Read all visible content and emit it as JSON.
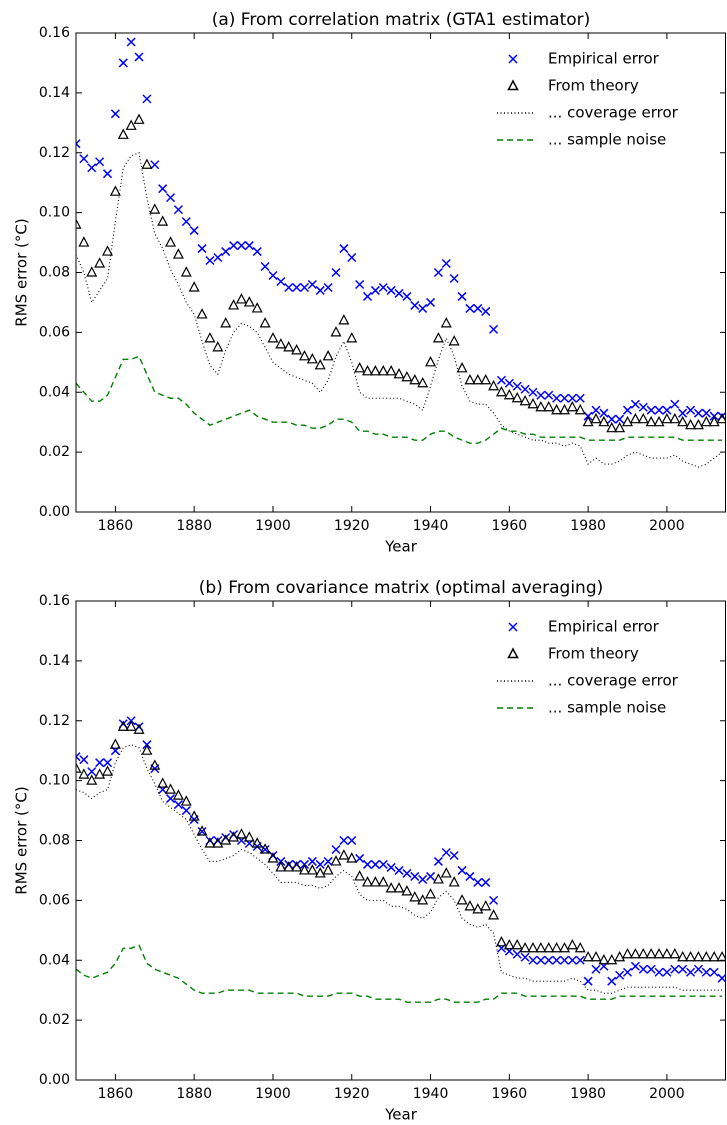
{
  "chart_data": [
    {
      "type": "scatter-line",
      "title": "(a) From correlation matrix (GTA1 estimator)",
      "xlabel": "Year",
      "ylabel": "RMS error (°C)",
      "xlim": [
        1850,
        2015
      ],
      "ylim": [
        0,
        0.16
      ],
      "xticks": [
        1860,
        1880,
        1900,
        1920,
        1940,
        1960,
        1980,
        2000
      ],
      "yticks": [
        {
          "value": 0,
          "label": "0.00"
        },
        {
          "value": 0.02,
          "label": "0.02"
        },
        {
          "value": 0.04,
          "label": "0.04"
        },
        {
          "value": 0.06,
          "label": "0.06"
        },
        {
          "value": 0.08,
          "label": "0.08"
        },
        {
          "value": 0.1,
          "label": "0.10"
        },
        {
          "value": 0.12,
          "label": "0.12"
        },
        {
          "value": 0.14,
          "label": "0.14"
        },
        {
          "value": 0.16,
          "label": "0.16"
        }
      ],
      "legend": "upper right",
      "x": [
        1850,
        1852,
        1854,
        1856,
        1858,
        1860,
        1862,
        1864,
        1866,
        1868,
        1870,
        1872,
        1874,
        1876,
        1878,
        1880,
        1882,
        1884,
        1886,
        1888,
        1890,
        1892,
        1894,
        1896,
        1898,
        1900,
        1902,
        1904,
        1906,
        1908,
        1910,
        1912,
        1914,
        1916,
        1918,
        1920,
        1922,
        1924,
        1926,
        1928,
        1930,
        1932,
        1934,
        1936,
        1938,
        1940,
        1942,
        1944,
        1946,
        1948,
        1950,
        1952,
        1954,
        1956,
        1958,
        1960,
        1962,
        1964,
        1966,
        1968,
        1970,
        1972,
        1974,
        1976,
        1978,
        1980,
        1982,
        1984,
        1986,
        1988,
        1990,
        1992,
        1994,
        1996,
        1998,
        2000,
        2002,
        2004,
        2006,
        2008,
        2010,
        2012,
        2014
      ],
      "series": [
        {
          "name": "Empirical error",
          "color": "#0000ff",
          "marker": "x",
          "values": [
            0.123,
            0.118,
            0.115,
            0.117,
            0.113,
            0.133,
            0.15,
            0.157,
            0.152,
            0.138,
            0.116,
            0.108,
            0.105,
            0.101,
            0.097,
            0.094,
            0.088,
            0.084,
            0.085,
            0.087,
            0.089,
            0.089,
            0.089,
            0.087,
            0.082,
            0.079,
            0.077,
            0.075,
            0.075,
            0.075,
            0.076,
            0.074,
            0.075,
            0.08,
            0.088,
            0.085,
            0.076,
            0.072,
            0.074,
            0.075,
            0.074,
            0.073,
            0.072,
            0.069,
            0.068,
            0.07,
            0.08,
            0.083,
            0.078,
            0.072,
            0.068,
            0.068,
            0.067,
            0.061,
            0.044,
            0.043,
            0.042,
            0.041,
            0.04,
            0.039,
            0.039,
            0.038,
            0.038,
            0.038,
            0.038,
            0.032,
            0.034,
            0.033,
            0.031,
            0.031,
            0.034,
            0.036,
            0.035,
            0.034,
            0.034,
            0.034,
            0.036,
            0.033,
            0.034,
            0.033,
            0.033,
            0.032,
            0.032
          ]
        },
        {
          "name": "From theory",
          "color": "#000000",
          "marker": "triangle",
          "values": [
            0.096,
            0.09,
            0.08,
            0.083,
            0.087,
            0.107,
            0.126,
            0.129,
            0.131,
            0.116,
            0.101,
            0.097,
            0.09,
            0.086,
            0.08,
            0.075,
            0.066,
            0.058,
            0.055,
            0.063,
            0.069,
            0.071,
            0.07,
            0.068,
            0.063,
            0.058,
            0.056,
            0.055,
            0.054,
            0.052,
            0.051,
            0.049,
            0.052,
            0.06,
            0.064,
            0.058,
            0.048,
            0.047,
            0.047,
            0.047,
            0.047,
            0.046,
            0.045,
            0.044,
            0.043,
            0.05,
            0.058,
            0.063,
            0.057,
            0.048,
            0.044,
            0.044,
            0.044,
            0.042,
            0.04,
            0.039,
            0.038,
            0.037,
            0.036,
            0.035,
            0.035,
            0.034,
            0.034,
            0.035,
            0.034,
            0.03,
            0.031,
            0.03,
            0.028,
            0.028,
            0.03,
            0.031,
            0.031,
            0.03,
            0.03,
            0.031,
            0.031,
            0.03,
            0.029,
            0.029,
            0.03,
            0.03,
            0.031
          ]
        },
        {
          "name": "... coverage error",
          "color": "#000000",
          "line": "dotted",
          "values": [
            0.086,
            0.08,
            0.07,
            0.074,
            0.078,
            0.097,
            0.115,
            0.119,
            0.12,
            0.105,
            0.093,
            0.088,
            0.081,
            0.076,
            0.07,
            0.066,
            0.057,
            0.049,
            0.046,
            0.054,
            0.06,
            0.063,
            0.062,
            0.06,
            0.055,
            0.05,
            0.048,
            0.046,
            0.045,
            0.044,
            0.043,
            0.04,
            0.044,
            0.052,
            0.057,
            0.05,
            0.04,
            0.038,
            0.038,
            0.038,
            0.038,
            0.038,
            0.037,
            0.036,
            0.034,
            0.042,
            0.051,
            0.058,
            0.052,
            0.042,
            0.037,
            0.036,
            0.036,
            0.033,
            0.029,
            0.027,
            0.026,
            0.025,
            0.024,
            0.024,
            0.023,
            0.023,
            0.022,
            0.023,
            0.022,
            0.016,
            0.018,
            0.016,
            0.016,
            0.017,
            0.019,
            0.02,
            0.019,
            0.018,
            0.018,
            0.018,
            0.019,
            0.017,
            0.016,
            0.015,
            0.016,
            0.018,
            0.02
          ]
        },
        {
          "name": "... sample noise",
          "color": "#008000",
          "line": "dashed",
          "values": [
            0.043,
            0.04,
            0.037,
            0.037,
            0.039,
            0.045,
            0.051,
            0.051,
            0.052,
            0.046,
            0.04,
            0.039,
            0.038,
            0.038,
            0.036,
            0.033,
            0.031,
            0.029,
            0.03,
            0.031,
            0.032,
            0.033,
            0.034,
            0.032,
            0.031,
            0.03,
            0.03,
            0.03,
            0.029,
            0.029,
            0.028,
            0.028,
            0.029,
            0.031,
            0.031,
            0.03,
            0.027,
            0.027,
            0.026,
            0.026,
            0.025,
            0.025,
            0.025,
            0.024,
            0.024,
            0.026,
            0.027,
            0.027,
            0.025,
            0.024,
            0.023,
            0.023,
            0.024,
            0.026,
            0.028,
            0.027,
            0.027,
            0.026,
            0.026,
            0.025,
            0.025,
            0.025,
            0.025,
            0.025,
            0.025,
            0.024,
            0.024,
            0.024,
            0.024,
            0.024,
            0.025,
            0.025,
            0.025,
            0.025,
            0.025,
            0.025,
            0.025,
            0.024,
            0.024,
            0.024,
            0.024,
            0.024,
            0.024
          ]
        }
      ]
    },
    {
      "type": "scatter-line",
      "title": "(b) From covariance matrix (optimal averaging)",
      "xlabel": "Year",
      "ylabel": "RMS error (°C)",
      "xlim": [
        1850,
        2015
      ],
      "ylim": [
        0,
        0.16
      ],
      "xticks": [
        1860,
        1880,
        1900,
        1920,
        1940,
        1960,
        1980,
        2000
      ],
      "yticks": [
        {
          "value": 0,
          "label": "0.00"
        },
        {
          "value": 0.02,
          "label": "0.02"
        },
        {
          "value": 0.04,
          "label": "0.04"
        },
        {
          "value": 0.06,
          "label": "0.06"
        },
        {
          "value": 0.08,
          "label": "0.08"
        },
        {
          "value": 0.1,
          "label": "0.10"
        },
        {
          "value": 0.12,
          "label": "0.12"
        },
        {
          "value": 0.14,
          "label": "0.14"
        },
        {
          "value": 0.16,
          "label": "0.16"
        }
      ],
      "legend": "upper right",
      "x": [
        1850,
        1852,
        1854,
        1856,
        1858,
        1860,
        1862,
        1864,
        1866,
        1868,
        1870,
        1872,
        1874,
        1876,
        1878,
        1880,
        1882,
        1884,
        1886,
        1888,
        1890,
        1892,
        1894,
        1896,
        1898,
        1900,
        1902,
        1904,
        1906,
        1908,
        1910,
        1912,
        1914,
        1916,
        1918,
        1920,
        1922,
        1924,
        1926,
        1928,
        1930,
        1932,
        1934,
        1936,
        1938,
        1940,
        1942,
        1944,
        1946,
        1948,
        1950,
        1952,
        1954,
        1956,
        1958,
        1960,
        1962,
        1964,
        1966,
        1968,
        1970,
        1972,
        1974,
        1976,
        1978,
        1980,
        1982,
        1984,
        1986,
        1988,
        1990,
        1992,
        1994,
        1996,
        1998,
        2000,
        2002,
        2004,
        2006,
        2008,
        2010,
        2012,
        2014
      ],
      "series": [
        {
          "name": "Empirical error",
          "color": "#0000ff",
          "marker": "x",
          "values": [
            0.108,
            0.107,
            0.103,
            0.106,
            0.106,
            0.11,
            0.119,
            0.12,
            0.118,
            0.112,
            0.104,
            0.097,
            0.094,
            0.092,
            0.09,
            0.087,
            0.083,
            0.08,
            0.08,
            0.081,
            0.082,
            0.08,
            0.079,
            0.078,
            0.077,
            0.075,
            0.073,
            0.072,
            0.072,
            0.072,
            0.073,
            0.072,
            0.073,
            0.077,
            0.08,
            0.08,
            0.074,
            0.072,
            0.072,
            0.072,
            0.071,
            0.07,
            0.069,
            0.068,
            0.067,
            0.068,
            0.073,
            0.076,
            0.075,
            0.07,
            0.068,
            0.066,
            0.066,
            0.06,
            0.044,
            0.043,
            0.042,
            0.041,
            0.04,
            0.04,
            0.04,
            0.04,
            0.04,
            0.04,
            0.04,
            0.033,
            0.037,
            0.038,
            0.033,
            0.035,
            0.036,
            0.038,
            0.037,
            0.037,
            0.036,
            0.036,
            0.037,
            0.037,
            0.036,
            0.037,
            0.036,
            0.036,
            0.034
          ]
        },
        {
          "name": "From theory",
          "color": "#000000",
          "marker": "triangle",
          "values": [
            0.104,
            0.102,
            0.1,
            0.102,
            0.103,
            0.112,
            0.118,
            0.118,
            0.117,
            0.11,
            0.105,
            0.099,
            0.097,
            0.095,
            0.093,
            0.088,
            0.083,
            0.079,
            0.079,
            0.08,
            0.081,
            0.082,
            0.081,
            0.079,
            0.077,
            0.074,
            0.071,
            0.071,
            0.071,
            0.07,
            0.07,
            0.069,
            0.07,
            0.073,
            0.075,
            0.074,
            0.068,
            0.066,
            0.066,
            0.066,
            0.064,
            0.064,
            0.063,
            0.061,
            0.06,
            0.062,
            0.067,
            0.069,
            0.066,
            0.06,
            0.058,
            0.057,
            0.058,
            0.055,
            0.046,
            0.045,
            0.045,
            0.044,
            0.044,
            0.044,
            0.044,
            0.044,
            0.044,
            0.045,
            0.044,
            0.041,
            0.041,
            0.04,
            0.04,
            0.041,
            0.042,
            0.042,
            0.042,
            0.042,
            0.042,
            0.042,
            0.042,
            0.041,
            0.041,
            0.041,
            0.041,
            0.041,
            0.041
          ]
        },
        {
          "name": "... coverage error",
          "color": "#000000",
          "line": "dotted",
          "values": [
            0.097,
            0.096,
            0.094,
            0.096,
            0.097,
            0.106,
            0.111,
            0.112,
            0.111,
            0.104,
            0.099,
            0.093,
            0.091,
            0.089,
            0.087,
            0.082,
            0.077,
            0.073,
            0.073,
            0.074,
            0.075,
            0.077,
            0.076,
            0.074,
            0.072,
            0.069,
            0.066,
            0.066,
            0.066,
            0.065,
            0.065,
            0.064,
            0.065,
            0.068,
            0.07,
            0.068,
            0.062,
            0.06,
            0.06,
            0.06,
            0.058,
            0.058,
            0.057,
            0.055,
            0.054,
            0.056,
            0.061,
            0.063,
            0.06,
            0.054,
            0.052,
            0.051,
            0.052,
            0.049,
            0.036,
            0.035,
            0.034,
            0.034,
            0.033,
            0.033,
            0.033,
            0.033,
            0.033,
            0.034,
            0.033,
            0.03,
            0.03,
            0.029,
            0.029,
            0.03,
            0.031,
            0.031,
            0.031,
            0.031,
            0.031,
            0.031,
            0.031,
            0.03,
            0.03,
            0.03,
            0.03,
            0.03,
            0.03
          ]
        },
        {
          "name": "... sample noise",
          "color": "#008000",
          "line": "dashed",
          "values": [
            0.037,
            0.035,
            0.034,
            0.035,
            0.036,
            0.039,
            0.044,
            0.044,
            0.045,
            0.039,
            0.037,
            0.036,
            0.035,
            0.034,
            0.032,
            0.03,
            0.029,
            0.029,
            0.029,
            0.03,
            0.03,
            0.03,
            0.03,
            0.029,
            0.029,
            0.029,
            0.029,
            0.029,
            0.029,
            0.028,
            0.028,
            0.028,
            0.028,
            0.029,
            0.029,
            0.029,
            0.028,
            0.028,
            0.027,
            0.027,
            0.027,
            0.027,
            0.026,
            0.026,
            0.026,
            0.026,
            0.027,
            0.027,
            0.026,
            0.026,
            0.026,
            0.026,
            0.027,
            0.027,
            0.029,
            0.029,
            0.029,
            0.028,
            0.028,
            0.028,
            0.028,
            0.028,
            0.028,
            0.028,
            0.028,
            0.027,
            0.027,
            0.027,
            0.027,
            0.028,
            0.028,
            0.028,
            0.028,
            0.028,
            0.028,
            0.028,
            0.028,
            0.028,
            0.028,
            0.028,
            0.028,
            0.028,
            0.028
          ]
        }
      ]
    }
  ]
}
